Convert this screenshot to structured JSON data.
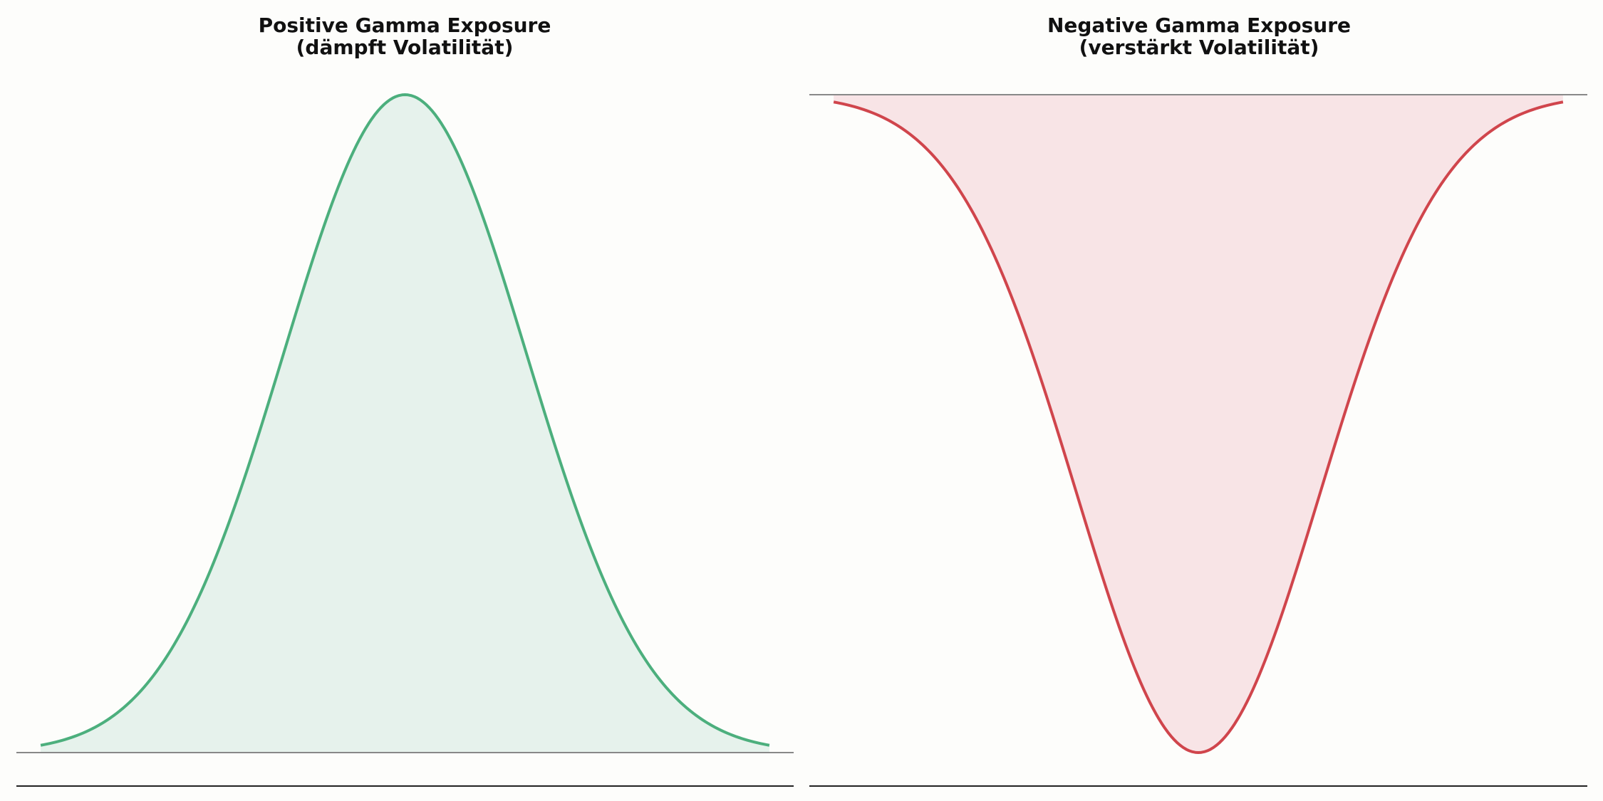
{
  "chart_data": [
    {
      "type": "area",
      "title": "Positive Gamma Exposure",
      "subtitle": "(dämpft Volatilität)",
      "xlabel": "",
      "ylabel": "",
      "grid": false,
      "xlim": [
        -3.2,
        3.2
      ],
      "ylim": [
        0,
        1
      ],
      "x": [
        -3.0,
        -2.5,
        -2.0,
        -1.5,
        -1.0,
        -0.5,
        0.0,
        0.5,
        1.0,
        1.5,
        2.0,
        2.5,
        3.0
      ],
      "y": [
        0.028,
        0.095,
        0.24,
        0.45,
        0.665,
        0.885,
        1.0,
        0.885,
        0.665,
        0.45,
        0.24,
        0.095,
        0.028
      ],
      "color": "#4caf7d",
      "fill_color": "#e6f2ec"
    },
    {
      "type": "area",
      "title": "Negative Gamma Exposure",
      "subtitle": "(verstärkt Volatilität)",
      "xlabel": "",
      "ylabel": "",
      "grid": false,
      "xlim": [
        -3.2,
        3.2
      ],
      "ylim": [
        -1,
        0
      ],
      "x": [
        -3.0,
        -2.5,
        -2.0,
        -1.5,
        -1.0,
        -0.5,
        0.0,
        0.5,
        1.0,
        1.5,
        2.0,
        2.5,
        3.0
      ],
      "y": [
        -0.028,
        -0.095,
        -0.24,
        -0.45,
        -0.665,
        -0.885,
        -1.0,
        -0.885,
        -0.665,
        -0.45,
        -0.24,
        -0.095,
        -0.028
      ],
      "color": "#d0454c",
      "fill_color": "#f8e4e6"
    }
  ]
}
